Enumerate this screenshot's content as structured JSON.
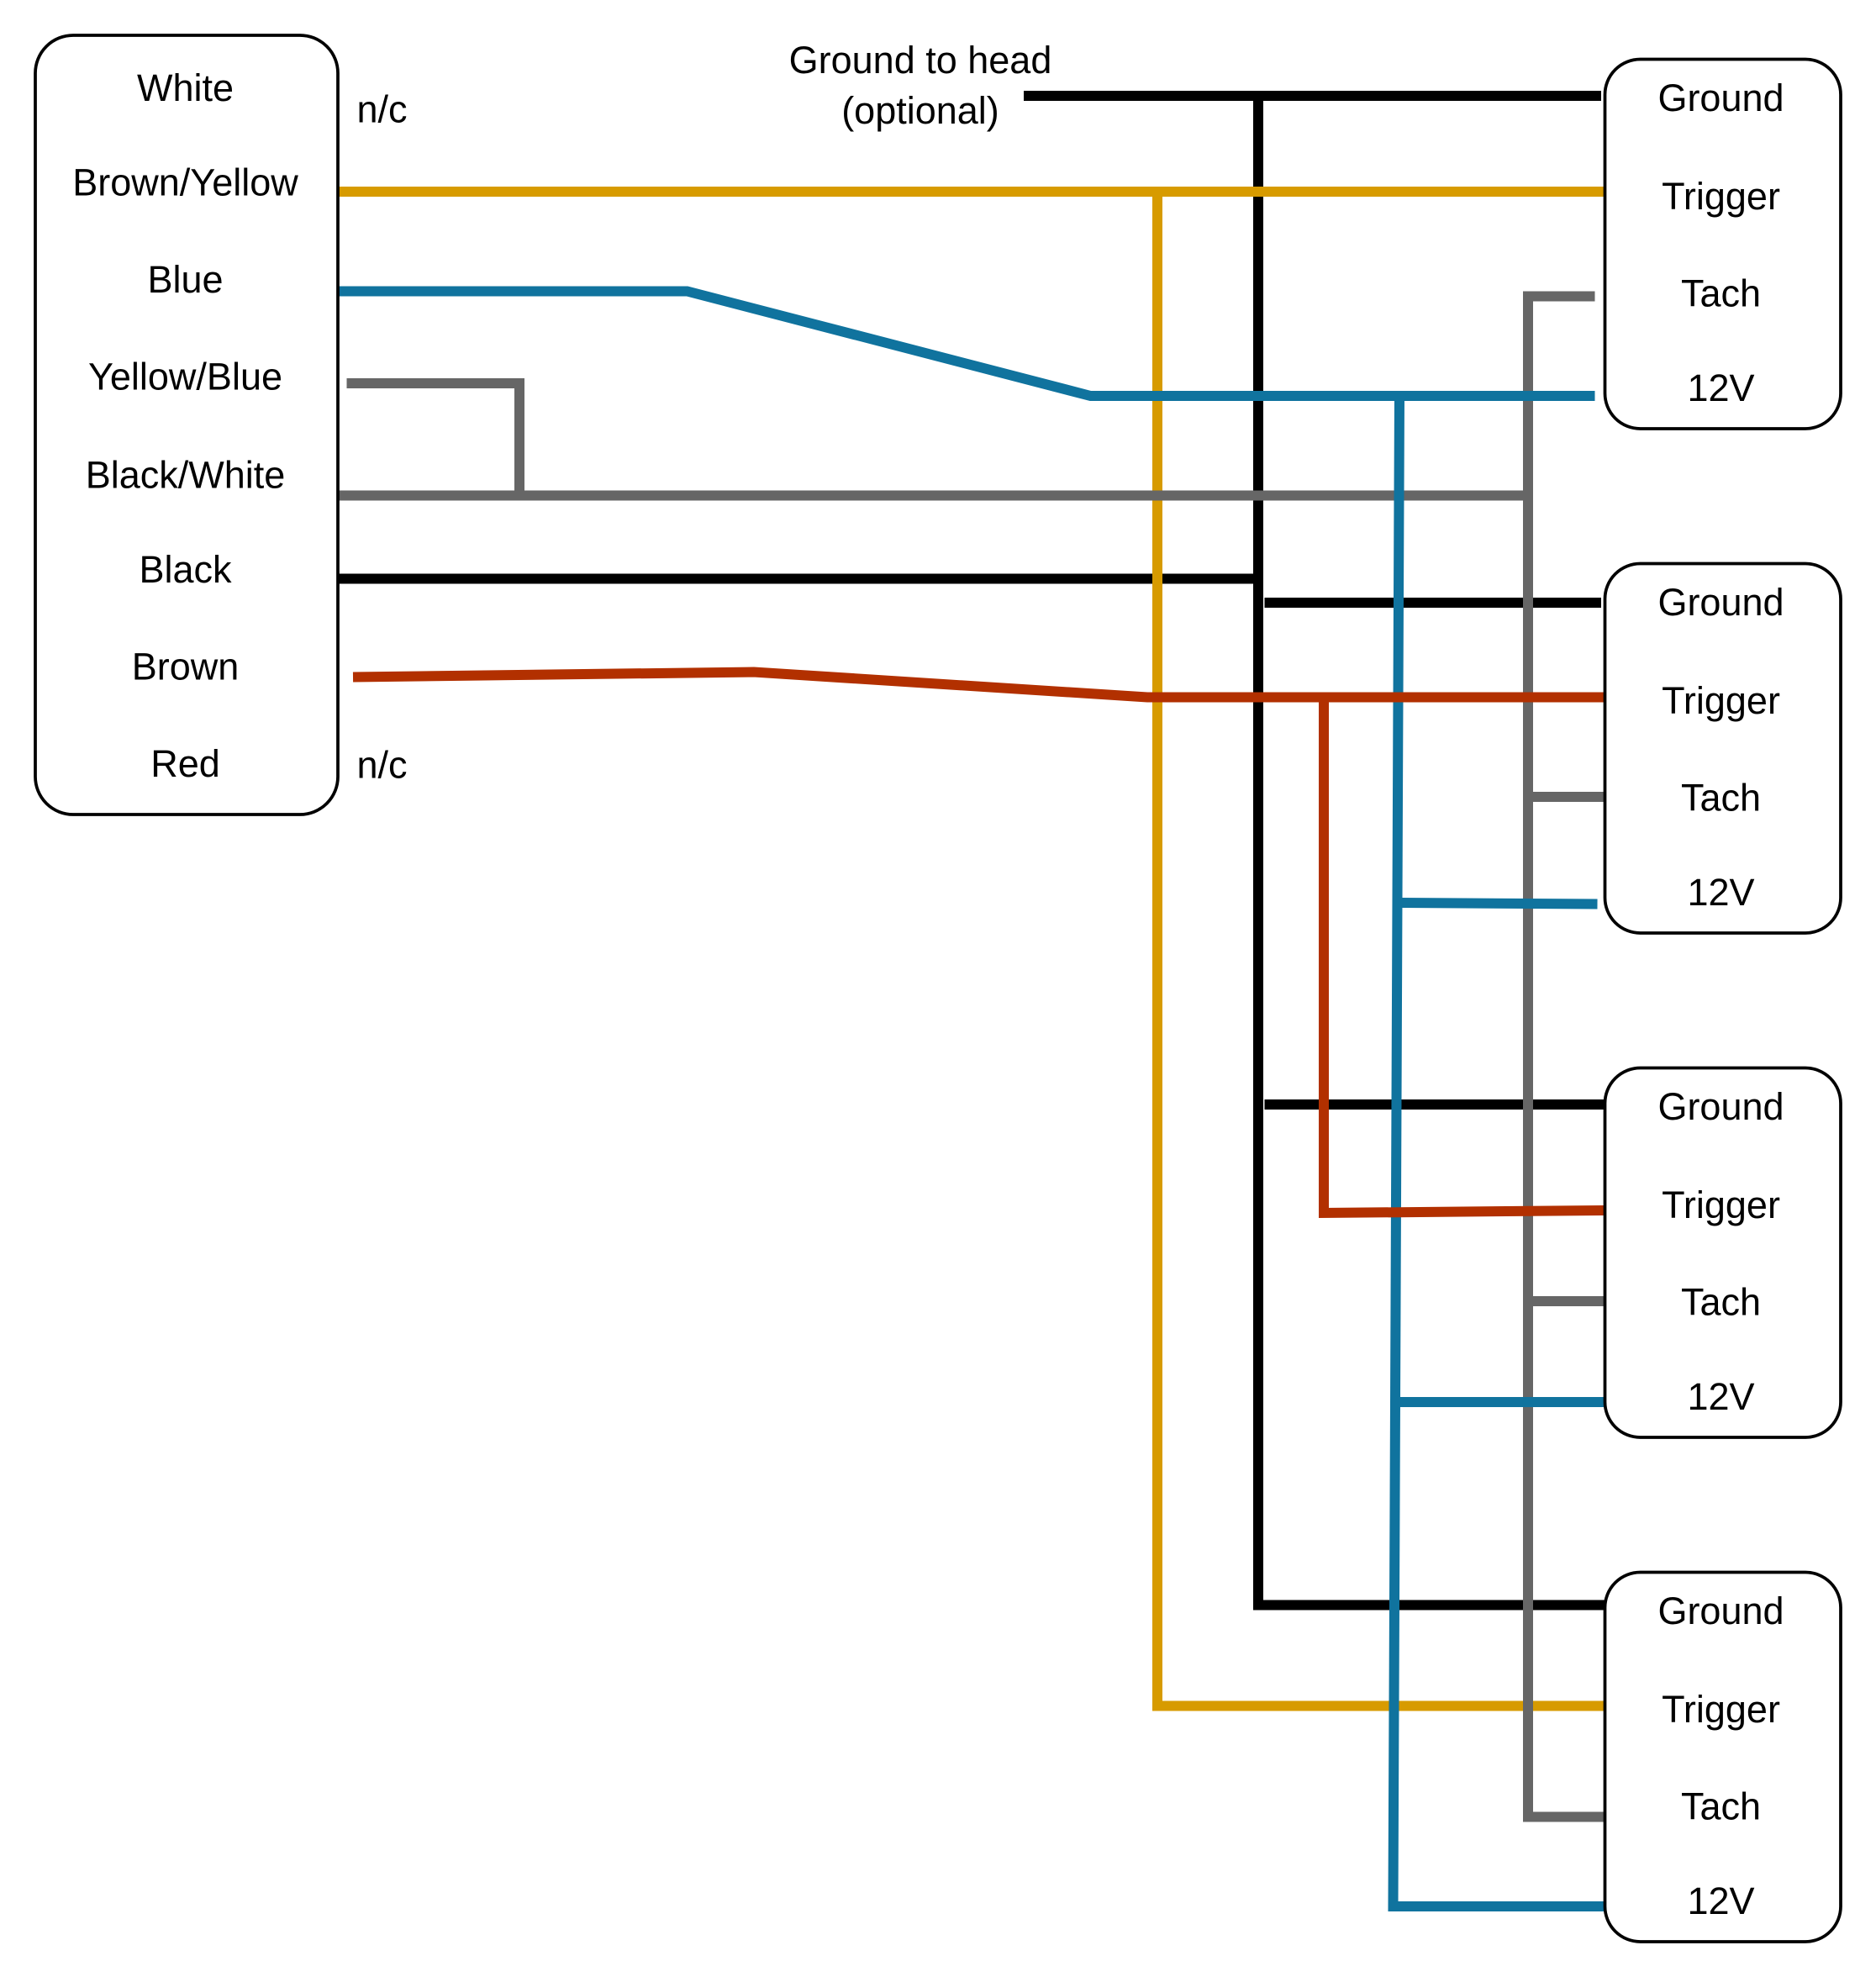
{
  "source_connector": {
    "pins": [
      "White",
      "Brown/Yellow",
      "Blue",
      "Yellow/Blue",
      "Black/White",
      "Black",
      "Brown",
      "Red"
    ],
    "nc_labels": [
      "n/c",
      "n/c"
    ]
  },
  "ground_note": {
    "line1": "Ground to head",
    "line2": "(optional)"
  },
  "target_connectors": [
    {
      "pins": [
        "Ground",
        "Trigger",
        "Tach",
        "12V"
      ]
    },
    {
      "pins": [
        "Ground",
        "Trigger",
        "Tach",
        "12V"
      ]
    },
    {
      "pins": [
        "Ground",
        "Trigger",
        "Tach",
        "12V"
      ]
    },
    {
      "pins": [
        "Ground",
        "Trigger",
        "Tach",
        "12V"
      ]
    }
  ],
  "wire_colors": {
    "black": "#000000",
    "yellow": "#D79B00",
    "blue": "#10739E",
    "gray": "#666666",
    "red": "#B23000"
  }
}
